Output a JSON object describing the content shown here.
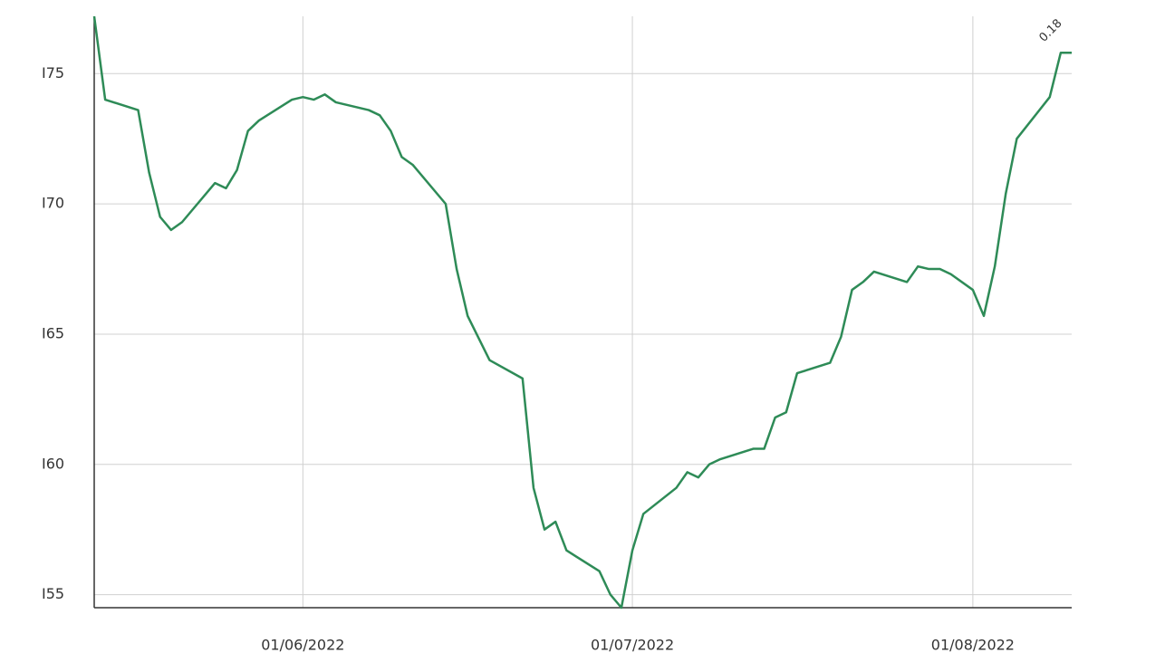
{
  "chart_data": {
    "type": "line",
    "x": [
      "13/05/2022",
      "14/05/2022",
      "17/05/2022",
      "18/05/2022",
      "19/05/2022",
      "20/05/2022",
      "21/05/2022",
      "24/05/2022",
      "25/05/2022",
      "26/05/2022",
      "27/05/2022",
      "28/05/2022",
      "31/05/2022",
      "01/06/2022",
      "02/06/2022",
      "03/06/2022",
      "04/06/2022",
      "07/06/2022",
      "08/06/2022",
      "09/06/2022",
      "10/06/2022",
      "11/06/2022",
      "14/06/2022",
      "15/06/2022",
      "16/06/2022",
      "18/06/2022",
      "21/06/2022",
      "22/06/2022",
      "23/06/2022",
      "24/06/2022",
      "25/06/2022",
      "28/06/2022",
      "29/06/2022",
      "30/06/2022",
      "01/07/2022",
      "02/07/2022",
      "05/07/2022",
      "06/07/2022",
      "07/07/2022",
      "08/07/2022",
      "09/07/2022",
      "12/07/2022",
      "13/07/2022",
      "14/07/2022",
      "15/07/2022",
      "16/07/2022",
      "19/07/2022",
      "20/07/2022",
      "21/07/2022",
      "22/07/2022",
      "23/07/2022",
      "26/07/2022",
      "27/07/2022",
      "28/07/2022",
      "29/07/2022",
      "30/07/2022",
      "01/08/2022",
      "02/08/2022",
      "03/08/2022",
      "04/08/2022",
      "05/08/2022",
      "08/08/2022",
      "09/08/2022",
      "10/08/2022"
    ],
    "series": [
      {
        "color": "#2e8b57",
        "values": [
          77.2,
          74.0,
          73.6,
          71.2,
          69.5,
          69.0,
          69.3,
          70.8,
          70.6,
          71.3,
          72.8,
          73.2,
          74.0,
          74.1,
          74.0,
          74.2,
          73.9,
          73.6,
          73.4,
          72.8,
          71.8,
          71.5,
          70.0,
          67.5,
          65.7,
          64.0,
          63.3,
          59.1,
          57.5,
          57.8,
          56.7,
          55.9,
          55.0,
          54.5,
          56.7,
          58.1,
          59.1,
          59.7,
          59.5,
          60.0,
          60.2,
          60.6,
          60.6,
          61.8,
          62.0,
          63.5,
          63.9,
          64.9,
          66.7,
          67.0,
          67.4,
          67.0,
          67.6,
          67.5,
          67.5,
          67.3,
          66.7,
          65.7,
          67.6,
          70.4,
          72.5,
          74.1,
          75.8,
          75.8
        ]
      }
    ],
    "xlim": [
      "13/05/2022",
      "10/08/2022"
    ],
    "xticks": [
      "01/06/2022",
      "01/07/2022",
      "01/08/2022"
    ],
    "ylim": [
      54.5,
      77.2
    ],
    "yticks": [
      {
        "value": 55,
        "label": "I55"
      },
      {
        "value": 60,
        "label": "I60"
      },
      {
        "value": 65,
        "label": "I65"
      },
      {
        "value": 70,
        "label": "I70"
      },
      {
        "value": 75,
        "label": "I75"
      }
    ],
    "annotation": "0.18",
    "grid": true
  }
}
